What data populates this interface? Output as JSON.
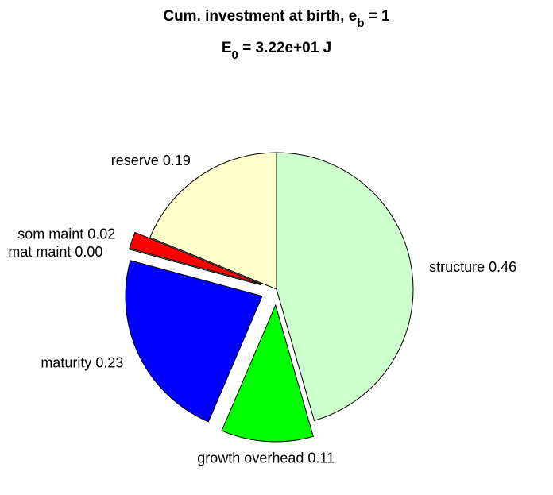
{
  "chart_data": {
    "type": "pie",
    "title": {
      "text": "Cum. investment at birth, e",
      "subscript": "b",
      "after": " = 1"
    },
    "subtitle": {
      "text": "E",
      "subscript": "0",
      "after": " = 3.22e+01 J"
    },
    "categories": [
      "structure",
      "growth overhead",
      "maturity",
      "mat maint",
      "som maint",
      "reserve"
    ],
    "values": [
      0.46,
      0.11,
      0.23,
      0,
      0.02,
      0.19
    ],
    "value_labels": [
      "0.46",
      "0.11",
      "0.23",
      "0.00",
      "0.02",
      "0.19"
    ],
    "colors": [
      "#ccffcc",
      "#00ff00",
      "#0000ff",
      "#800080",
      "#ff0000",
      "#ffffcc"
    ],
    "exploded": [
      false,
      true,
      true,
      true,
      true,
      false
    ]
  }
}
